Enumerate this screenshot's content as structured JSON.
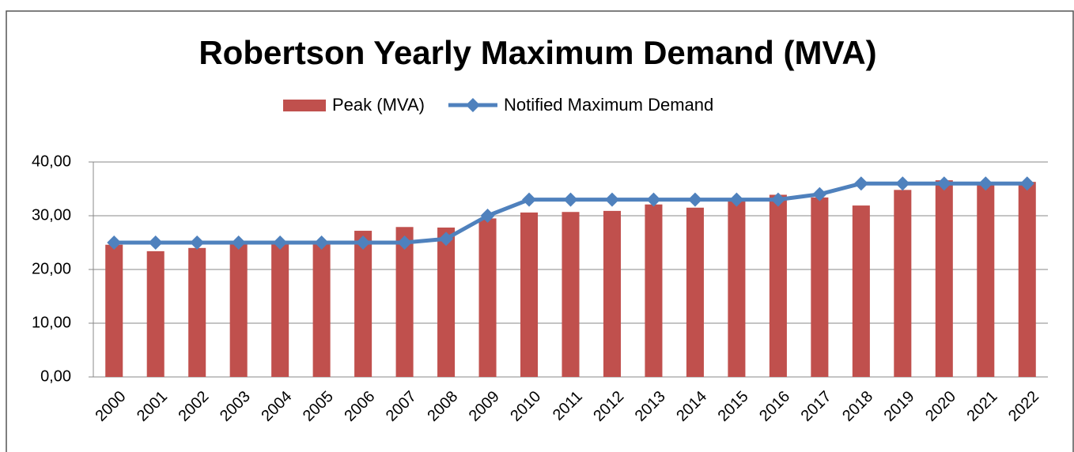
{
  "chart_data": {
    "type": "bar_line",
    "title": "Robertson Yearly Maximum Demand (MVA)",
    "categories": [
      "2000",
      "2001",
      "2002",
      "2003",
      "2004",
      "2005",
      "2006",
      "2007",
      "2008",
      "2009",
      "2010",
      "2011",
      "2012",
      "2013",
      "2014",
      "2015",
      "2016",
      "2017",
      "2018",
      "2019",
      "2020",
      "2021",
      "2022"
    ],
    "series": [
      {
        "name": "Peak (MVA)",
        "type": "bar",
        "color": "#c0504d",
        "values": [
          24.6,
          23.4,
          24.0,
          25.0,
          24.8,
          25.2,
          27.2,
          27.9,
          27.8,
          29.5,
          30.6,
          30.7,
          30.9,
          32.1,
          31.5,
          32.8,
          33.9,
          33.4,
          31.9,
          34.8,
          36.6,
          35.8,
          36.3
        ]
      },
      {
        "name": "Notified Maximum Demand",
        "type": "line",
        "color": "#4f81bd",
        "values": [
          25,
          25,
          25,
          25,
          25,
          25,
          25,
          25,
          25.7,
          30,
          33,
          33,
          33,
          33,
          33,
          33,
          33,
          34,
          36,
          36,
          36,
          36,
          36
        ]
      }
    ],
    "ylim": [
      0,
      40
    ],
    "yticks": [
      {
        "value": 0,
        "label": "0,00"
      },
      {
        "value": 10,
        "label": "10,00"
      },
      {
        "value": 20,
        "label": "20,00"
      },
      {
        "value": 30,
        "label": "30,00"
      },
      {
        "value": 40,
        "label": "40,00"
      }
    ],
    "grid": true,
    "legend": "top"
  }
}
